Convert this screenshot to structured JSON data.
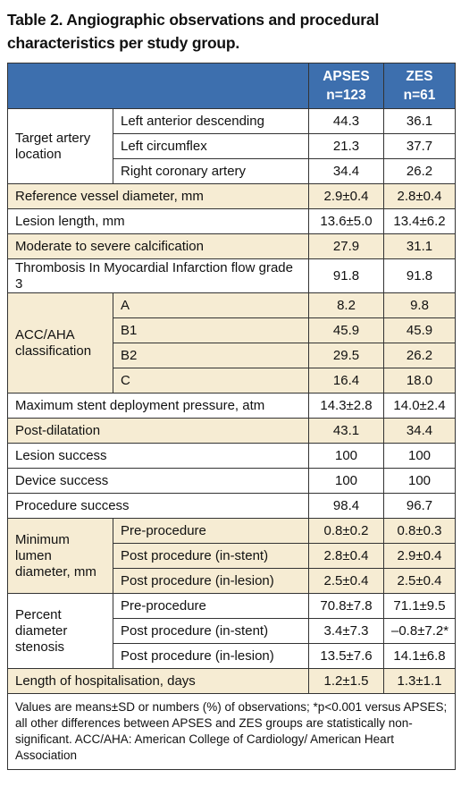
{
  "title_line1": "Table 2. Angiographic observations and procedural",
  "title_line2": "characteristics per study group.",
  "header": {
    "col1_line1": "APSES",
    "col1_line2": "n=123",
    "col2_line1": "ZES",
    "col2_line2": "n=61"
  },
  "rows": {
    "target_artery": {
      "label": "Target artery location",
      "items": [
        {
          "label": "Left anterior descending",
          "apses": "44.3",
          "zes": "36.1"
        },
        {
          "label": "Left circumflex",
          "apses": "21.3",
          "zes": "37.7"
        },
        {
          "label": "Right coronary artery",
          "apses": "34.4",
          "zes": "26.2"
        }
      ]
    },
    "ref_vessel": {
      "label": "Reference vessel diameter, mm",
      "apses": "2.9±0.4",
      "zes": "2.8±0.4"
    },
    "lesion_length": {
      "label": "Lesion length, mm",
      "apses": "13.6±5.0",
      "zes": "13.4±6.2"
    },
    "calcification": {
      "label": "Moderate to severe calcification",
      "apses": "27.9",
      "zes": "31.1"
    },
    "timi": {
      "label": "Thrombosis In Myocardial Infarction flow grade 3",
      "apses": "91.8",
      "zes": "91.8"
    },
    "acc_aha": {
      "label": "ACC/AHA classification",
      "items": [
        {
          "label": "A",
          "apses": "8.2",
          "zes": "9.8"
        },
        {
          "label": "B1",
          "apses": "45.9",
          "zes": "45.9"
        },
        {
          "label": "B2",
          "apses": "29.5",
          "zes": "26.2"
        },
        {
          "label": "C",
          "apses": "16.4",
          "zes": "18.0"
        }
      ]
    },
    "max_pressure": {
      "label": "Maximum stent deployment pressure, atm",
      "apses": "14.3±2.8",
      "zes": "14.0±2.4"
    },
    "post_dilatation": {
      "label": "Post-dilatation",
      "apses": "43.1",
      "zes": "34.4"
    },
    "lesion_success": {
      "label": "Lesion success",
      "apses": "100",
      "zes": "100"
    },
    "device_success": {
      "label": "Device success",
      "apses": "100",
      "zes": "100"
    },
    "procedure_success": {
      "label": "Procedure success",
      "apses": "98.4",
      "zes": "96.7"
    },
    "min_lumen": {
      "label": "Minimum lumen diameter, mm",
      "items": [
        {
          "label": "Pre-procedure",
          "apses": "0.8±0.2",
          "zes": "0.8±0.3"
        },
        {
          "label": "Post procedure (in-stent)",
          "apses": "2.8±0.4",
          "zes": "2.9±0.4"
        },
        {
          "label": "Post procedure (in-lesion)",
          "apses": "2.5±0.4",
          "zes": "2.5±0.4"
        }
      ]
    },
    "pct_stenosis": {
      "label": "Percent diameter stenosis",
      "items": [
        {
          "label": "Pre-procedure",
          "apses": "70.8±7.8",
          "zes": "71.1±9.5"
        },
        {
          "label": "Post procedure (in-stent)",
          "apses": "3.4±7.3",
          "zes": "–0.8±7.2*"
        },
        {
          "label": "Post procedure (in-lesion)",
          "apses": "13.5±7.6",
          "zes": "14.1±6.8"
        }
      ]
    },
    "hospitalisation": {
      "label": "Length of hospitalisation, days",
      "apses": "1.2±1.5",
      "zes": "1.3±1.1"
    }
  },
  "footnote": "Values are means±SD or numbers (%) of observations; *p<0.001 versus APSES; all other differences between APSES and ZES groups are statistically non-significant. ACC/AHA: American College of Cardiology/ American Heart Association",
  "colors": {
    "header_bg": "#3d6fae",
    "shaded_row": "#f6ecd3",
    "header_text": "#ffffff"
  }
}
